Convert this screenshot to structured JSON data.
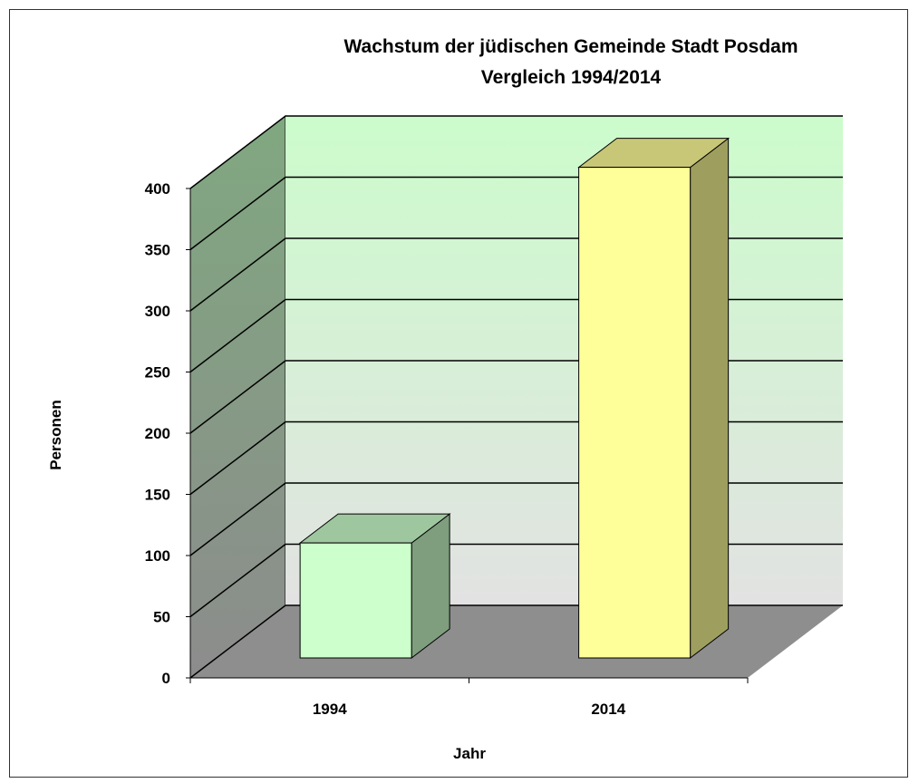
{
  "chart_data": {
    "type": "bar3d",
    "title": "Wachstum der jüdischen Gemeinde Stadt Posdam",
    "subtitle": "Vergleich 1994/2014",
    "x_label": "Jahr",
    "y_label": "Personen",
    "categories": [
      "1994",
      "2014"
    ],
    "values": [
      94,
      401
    ],
    "colors": [
      "#ccffcc",
      "#ffff99"
    ],
    "ylim": [
      0,
      400
    ],
    "yticks": [
      0,
      50,
      100,
      150,
      200,
      250,
      300,
      350,
      400
    ],
    "grid": true
  }
}
